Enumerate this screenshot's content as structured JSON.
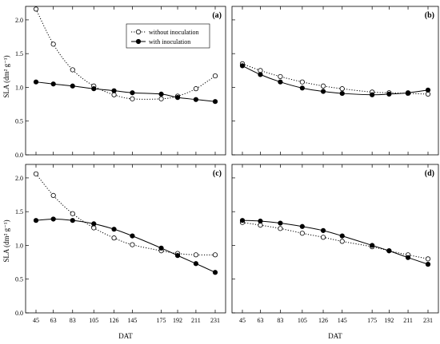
{
  "figure": {
    "y_axis_label": "SLA (dm² g⁻¹)",
    "x_axis_label": "DAT"
  },
  "legend": {
    "without_label": "without inoculation",
    "with_label": "with inoculation"
  },
  "chart_data": [
    {
      "type": "line",
      "panel": "(a)",
      "categories": [
        "45",
        "63",
        "83",
        "105",
        "126",
        "145",
        "175",
        "192",
        "211",
        "231"
      ],
      "x": [
        45,
        63,
        83,
        105,
        126,
        145,
        175,
        192,
        211,
        231
      ],
      "series": [
        {
          "name": "without inoculation",
          "marker": "open-circle",
          "line": "dotted",
          "values": [
            2.16,
            1.64,
            1.26,
            1.02,
            0.89,
            0.83,
            0.83,
            0.87,
            0.98,
            1.17
          ]
        },
        {
          "name": "with inoculation",
          "marker": "filled-circle",
          "line": "solid",
          "values": [
            1.08,
            1.05,
            1.02,
            0.98,
            0.95,
            0.92,
            0.9,
            0.85,
            0.82,
            0.79
          ]
        }
      ],
      "ylim": [
        0,
        2.2
      ],
      "yticks": [
        "0.0",
        "0.5",
        "1.0",
        "1.5",
        "2.0"
      ],
      "show_legend": true
    },
    {
      "type": "line",
      "panel": "(b)",
      "categories": [
        "45",
        "63",
        "83",
        "105",
        "126",
        "145",
        "175",
        "192",
        "211",
        "231"
      ],
      "x": [
        45,
        63,
        83,
        105,
        126,
        145,
        175,
        192,
        211,
        231
      ],
      "series": [
        {
          "name": "without inoculation",
          "marker": "open-circle",
          "line": "dotted",
          "values": [
            1.35,
            1.25,
            1.16,
            1.08,
            1.02,
            0.98,
            0.93,
            0.92,
            0.91,
            0.9
          ]
        },
        {
          "name": "with inoculation",
          "marker": "filled-circle",
          "line": "solid",
          "values": [
            1.32,
            1.19,
            1.08,
            0.99,
            0.94,
            0.91,
            0.89,
            0.9,
            0.92,
            0.96
          ]
        }
      ],
      "ylim": [
        0,
        2.2
      ],
      "yticks": [],
      "show_legend": false
    },
    {
      "type": "line",
      "panel": "(c)",
      "categories": [
        "45",
        "63",
        "83",
        "105",
        "126",
        "145",
        "175",
        "192",
        "211",
        "231"
      ],
      "x": [
        45,
        63,
        83,
        105,
        126,
        145,
        175,
        192,
        211,
        231
      ],
      "series": [
        {
          "name": "without inoculation",
          "marker": "open-circle",
          "line": "dotted",
          "values": [
            2.06,
            1.74,
            1.47,
            1.26,
            1.11,
            1.01,
            0.92,
            0.88,
            0.86,
            0.86
          ]
        },
        {
          "name": "with inoculation",
          "marker": "filled-circle",
          "line": "solid",
          "values": [
            1.37,
            1.39,
            1.37,
            1.32,
            1.24,
            1.14,
            0.96,
            0.85,
            0.73,
            0.6
          ]
        }
      ],
      "ylim": [
        0,
        2.2
      ],
      "yticks": [
        "0.0",
        "0.5",
        "1.0",
        "1.5",
        "2.0"
      ],
      "show_legend": false
    },
    {
      "type": "line",
      "panel": "(d)",
      "categories": [
        "45",
        "63",
        "83",
        "105",
        "126",
        "145",
        "175",
        "192",
        "211",
        "231"
      ],
      "x": [
        45,
        63,
        83,
        105,
        126,
        145,
        175,
        192,
        211,
        231
      ],
      "series": [
        {
          "name": "without inoculation",
          "marker": "open-circle",
          "line": "dotted",
          "values": [
            1.34,
            1.3,
            1.25,
            1.18,
            1.12,
            1.06,
            0.98,
            0.92,
            0.86,
            0.8
          ]
        },
        {
          "name": "with inoculation",
          "marker": "filled-circle",
          "line": "solid",
          "values": [
            1.37,
            1.36,
            1.33,
            1.28,
            1.22,
            1.14,
            1.0,
            0.92,
            0.82,
            0.72
          ]
        }
      ],
      "ylim": [
        0,
        2.2
      ],
      "yticks": [],
      "show_legend": false
    }
  ]
}
